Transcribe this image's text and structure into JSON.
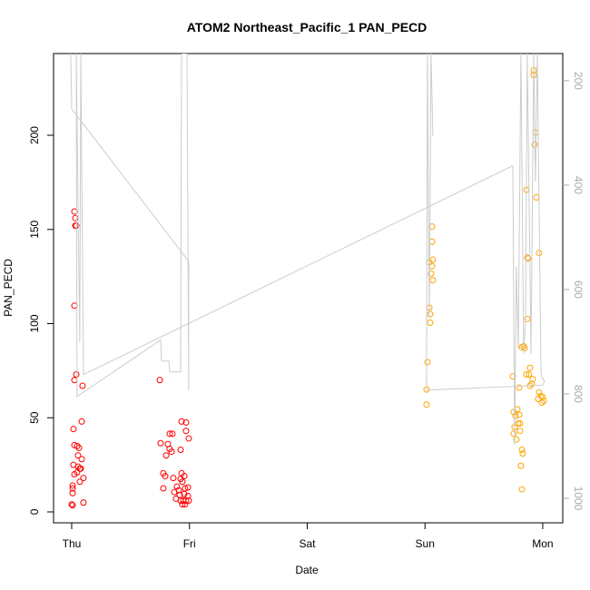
{
  "chart_data": {
    "type": "scatter",
    "title": "ATOM2 Northeast_Pacific_1 PAN_PECD",
    "x_label": "Date",
    "y_label": "PAN_PECD",
    "xlim": [
      -0.154,
      4.17
    ],
    "xticks": [
      {
        "value": 0,
        "label": "Thu"
      },
      {
        "value": 1,
        "label": "Fri"
      },
      {
        "value": 2,
        "label": "Sat"
      },
      {
        "value": 3,
        "label": "Sun"
      },
      {
        "value": 4,
        "label": "Mon"
      }
    ],
    "ylim": [
      -5.8,
      243.4
    ],
    "yticks": [
      0,
      50,
      100,
      150,
      200
    ],
    "y2lim": [
      1047,
      148
    ],
    "y2ticks": [
      200,
      400,
      600,
      800,
      1000
    ],
    "series": [
      {
        "color": "#ff0000",
        "x": [
          0.023,
          0.031,
          0.031,
          0.039,
          0.023,
          0.039,
          0.023,
          0.092,
          0.085,
          0.015,
          0.023,
          0.046,
          0.062,
          0.054,
          0.015,
          0.085,
          0.054,
          0.069,
          0.077,
          0.046,
          0.023,
          0.1,
          0.069,
          0.008,
          0.008,
          0.008,
          0.1,
          0,
          0.008,
          0.748,
          0.755,
          0.817,
          0.832,
          0.855,
          0.832,
          0.848,
          0.925,
          0.933,
          0.971,
          0.994,
          0.971,
          0.802,
          0.778,
          0.794,
          0.863,
          0.933,
          0.956,
          0.925,
          0.94,
          0.894,
          0.909,
          0.963,
          0.987,
          0.778,
          0.871,
          0.917,
          0.956,
          0.987,
          0.886,
          0.925,
          0.948,
          0.971,
          0.994,
          0.94,
          0.963
        ],
        "values": [
          159.5,
          156,
          152,
          152,
          109.5,
          73,
          70,
          67,
          48,
          44,
          35.5,
          35,
          34,
          30,
          25,
          28,
          24,
          23,
          23,
          21,
          20,
          18,
          16,
          14,
          12.5,
          10,
          5,
          4,
          3.5,
          70,
          36.5,
          36,
          41.5,
          41.5,
          33.5,
          32,
          33,
          48,
          47.5,
          39,
          43,
          30,
          20.5,
          19,
          18,
          20.5,
          19,
          17.5,
          16,
          13.5,
          11.5,
          12.5,
          13,
          12.5,
          10.5,
          9,
          9.5,
          8.5,
          7,
          6,
          6,
          6,
          6,
          4,
          4
        ]
      },
      {
        "color": "#ffa500",
        "x": [
          3.06,
          3.06,
          3.067,
          3.037,
          3.06,
          3.052,
          3.067,
          3.037,
          3.044,
          3.044,
          3.021,
          3.013,
          3.013,
          3.923,
          3.923,
          3.938,
          3.931,
          3.946,
          3.861,
          3.869,
          3.877,
          3.969,
          3.869,
          3.838,
          3.846,
          3.823,
          3.892,
          3.884,
          3.861,
          3.746,
          3.915,
          3.908,
          3.892,
          3.8,
          3.969,
          3.985,
          4,
          4.008,
          3.992,
          3.961,
          3.784,
          3.753,
          3.769,
          3.8,
          3.807,
          3.792,
          3.807,
          3.761,
          3.753,
          3.776,
          3.823,
          3.83,
          3.815,
          3.823
        ],
        "values": [
          151.5,
          143.5,
          134,
          132.5,
          130.5,
          126.5,
          123,
          108.5,
          105,
          100.5,
          79.5,
          65,
          57,
          234.5,
          232,
          201.5,
          195,
          167,
          171,
          135,
          134.5,
          137.5,
          102.5,
          88,
          87,
          87.5,
          76.5,
          73,
          73,
          72,
          70.5,
          68,
          67,
          66,
          63.5,
          61.5,
          61,
          59,
          58,
          60,
          54.5,
          53,
          51,
          51.5,
          47,
          47,
          43,
          45,
          41.5,
          38.5,
          33,
          31,
          24.5,
          12
        ]
      },
      {
        "color": "#cccccc",
        "axis": "y2",
        "style": "line",
        "x": [
          -0.008,
          0,
          0.994,
          0.994,
          0.979,
          0.933,
          0.925,
          0.832,
          0.825,
          0.763,
          0.755,
          0.046,
          0.039,
          0.069,
          0.077,
          0.1,
          3.746,
          3.761,
          3.776,
          3.792,
          3.815,
          3.838,
          3.854,
          3.869,
          3.9,
          3.923,
          3.938,
          3.954,
          3.985,
          3.992,
          4.015,
          4,
          3.013,
          3.021,
          3.037,
          3.052,
          3.067
        ],
        "values": [
          148,
          254,
          546,
          793,
          148,
          148,
          758,
          758,
          737,
          737,
          697,
          805,
          148,
          701,
          148,
          763,
          363,
          897,
          555,
          715,
          148,
          723,
          654,
          148,
          723,
          148,
          393,
          148,
          758,
          767,
          776,
          783,
          793,
          148,
          654,
          148,
          306
        ]
      }
    ]
  }
}
